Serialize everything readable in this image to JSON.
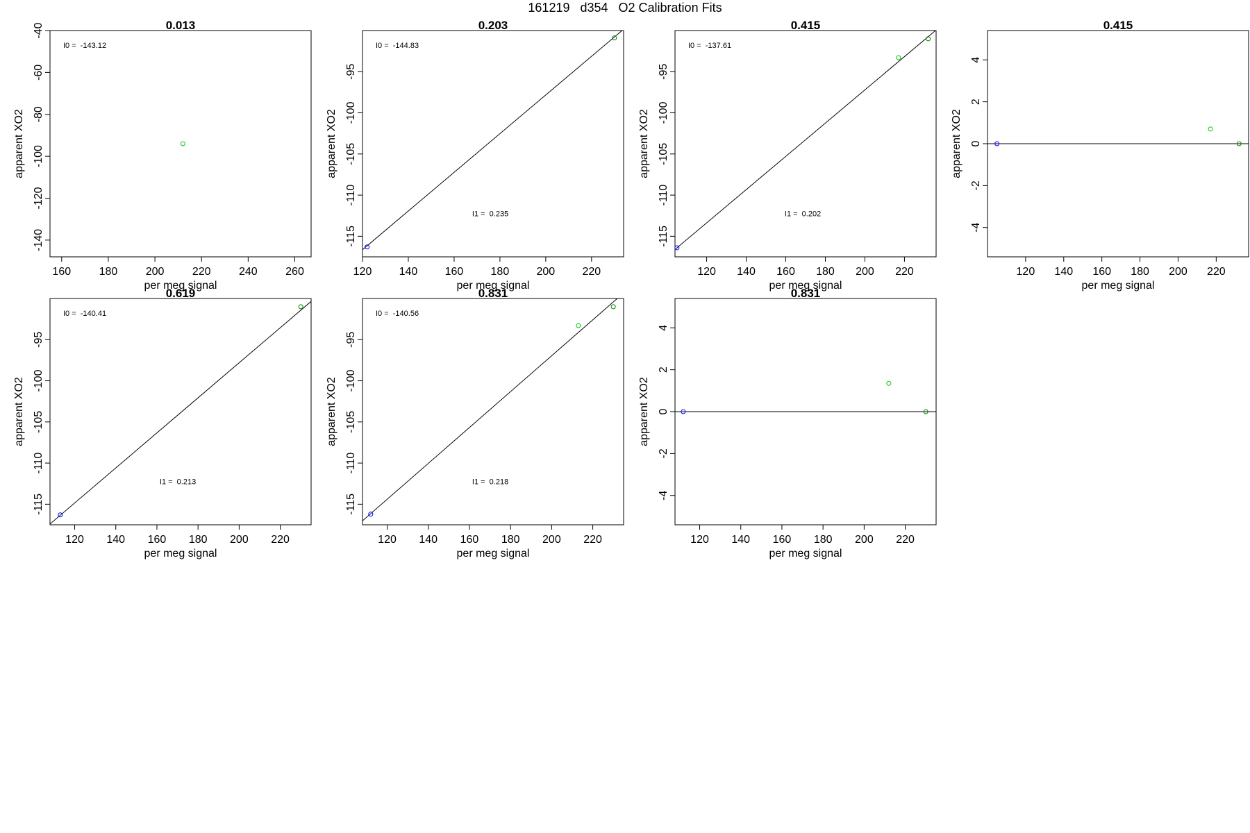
{
  "page": {
    "title": "161219   d354   O2 Calibration Fits"
  },
  "colors": {
    "standard_a": "#0000ff",
    "standard_b": "#00cc00",
    "standard_c": "#008000",
    "line": "#000000"
  },
  "chart_data": [
    {
      "type": "scatter",
      "title": "0.013",
      "xlabel": "per meg signal",
      "ylabel": "apparent XO2",
      "xlim": [
        155,
        267
      ],
      "ylim": [
        -148,
        -40
      ],
      "xticks": [
        "160",
        "180",
        "200",
        "220",
        "240",
        "260"
      ],
      "yticks": [
        "-40",
        "-60",
        "-80",
        "-100",
        "-120",
        "-140"
      ],
      "points": [
        {
          "x": 212,
          "y": -94,
          "color": "#00cc00"
        }
      ],
      "fit_line": null,
      "annotations": [
        "I0 =  -143.12"
      ]
    },
    {
      "type": "scatter",
      "title": "0.203",
      "xlabel": "per meg signal",
      "ylabel": "apparent XO2",
      "xlim": [
        120,
        234
      ],
      "ylim": [
        -117.5,
        -90
      ],
      "xticks": [
        "120",
        "140",
        "160",
        "180",
        "200",
        "220"
      ],
      "yticks": [
        "-95",
        "-100",
        "-105",
        "-110",
        "-115"
      ],
      "points": [
        {
          "x": 122,
          "y": -116.3,
          "color": "#0000ff"
        },
        {
          "x": 230,
          "y": -90.9,
          "color": "#008000"
        }
      ],
      "fit_line": {
        "intercept": -144.83,
        "slope": 0.235
      },
      "annotations": [
        "I0 =  -144.83",
        "I1 =  0.235"
      ]
    },
    {
      "type": "scatter",
      "title": "0.415",
      "xlabel": "per meg signal",
      "ylabel": "apparent XO2",
      "xlim": [
        104,
        236
      ],
      "ylim": [
        -117.5,
        -90
      ],
      "xticks": [
        "120",
        "140",
        "160",
        "180",
        "200",
        "220"
      ],
      "yticks": [
        "-95",
        "-100",
        "-105",
        "-110",
        "-115"
      ],
      "points": [
        {
          "x": 105,
          "y": -116.4,
          "color": "#0000ff"
        },
        {
          "x": 217,
          "y": -93.3,
          "color": "#00cc00"
        },
        {
          "x": 232,
          "y": -91.0,
          "color": "#008000"
        }
      ],
      "fit_line": {
        "intercept": -137.61,
        "slope": 0.202
      },
      "annotations": [
        "I0 =  -137.61",
        "I1 =  0.202"
      ]
    },
    {
      "type": "scatter",
      "title": "0.415",
      "xlabel": "per meg signal",
      "ylabel": "apparent XO2",
      "xlim": [
        100,
        237
      ],
      "ylim": [
        -5.4,
        5.4
      ],
      "xticks": [
        "120",
        "140",
        "160",
        "180",
        "200",
        "220"
      ],
      "yticks": [
        "4",
        "2",
        "0",
        "-2",
        "-4"
      ],
      "points": [
        {
          "x": 105,
          "y": 0,
          "color": "#0000ff"
        },
        {
          "x": 217,
          "y": 0.7,
          "color": "#00cc00"
        },
        {
          "x": 232,
          "y": 0,
          "color": "#008000"
        }
      ],
      "fit_line": {
        "intercept": 0,
        "slope": 0
      },
      "annotations": []
    },
    {
      "type": "scatter",
      "title": "0.619",
      "xlabel": "per meg signal",
      "ylabel": "apparent XO2",
      "xlim": [
        108,
        235
      ],
      "ylim": [
        -117.5,
        -90
      ],
      "xticks": [
        "120",
        "140",
        "160",
        "180",
        "200",
        "220"
      ],
      "yticks": [
        "-95",
        "-100",
        "-105",
        "-110",
        "-115"
      ],
      "points": [
        {
          "x": 113,
          "y": -116.3,
          "color": "#0000ff"
        },
        {
          "x": 230,
          "y": -91.0,
          "color": "#008000"
        }
      ],
      "fit_line": {
        "intercept": -140.41,
        "slope": 0.213
      },
      "annotations": [
        "I0 =  -140.41",
        "I1 =  0.213"
      ]
    },
    {
      "type": "scatter",
      "title": "0.831",
      "xlabel": "per meg signal",
      "ylabel": "apparent XO2",
      "xlim": [
        108,
        235
      ],
      "ylim": [
        -117.5,
        -90
      ],
      "xticks": [
        "120",
        "140",
        "160",
        "180",
        "200",
        "220"
      ],
      "yticks": [
        "-95",
        "-100",
        "-105",
        "-110",
        "-115"
      ],
      "points": [
        {
          "x": 112,
          "y": -116.2,
          "color": "#0000ff"
        },
        {
          "x": 213,
          "y": -93.3,
          "color": "#00cc00"
        },
        {
          "x": 230,
          "y": -91.0,
          "color": "#008000"
        }
      ],
      "fit_line": {
        "intercept": -140.56,
        "slope": 0.218
      },
      "annotations": [
        "I0 =  -140.56",
        "I1 =  0.218"
      ]
    },
    {
      "type": "scatter",
      "title": "0.831",
      "xlabel": "per meg signal",
      "ylabel": "apparent XO2",
      "xlim": [
        108,
        235
      ],
      "ylim": [
        -5.4,
        5.4
      ],
      "xticks": [
        "120",
        "140",
        "160",
        "180",
        "200",
        "220"
      ],
      "yticks": [
        "4",
        "2",
        "0",
        "-2",
        "-4"
      ],
      "points": [
        {
          "x": 112,
          "y": 0,
          "color": "#0000ff"
        },
        {
          "x": 212,
          "y": 1.35,
          "color": "#00cc00"
        },
        {
          "x": 230,
          "y": 0,
          "color": "#008000"
        }
      ],
      "fit_line": {
        "intercept": 0,
        "slope": 0
      },
      "annotations": []
    }
  ]
}
